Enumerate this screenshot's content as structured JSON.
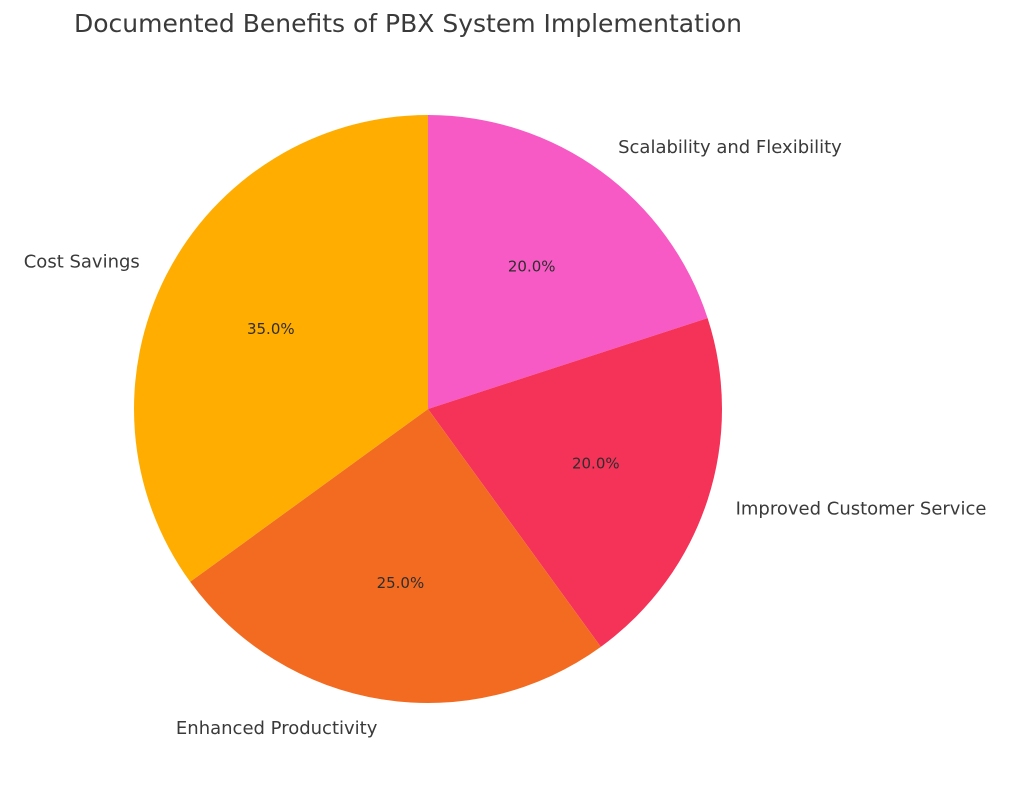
{
  "chart_data": {
    "type": "pie",
    "title": "Documented Benefits of PBX System Implementation",
    "categories": [
      "Scalability and Flexibility",
      "Improved Customer Service",
      "Enhanced Productivity",
      "Cost Savings"
    ],
    "values": [
      20.0,
      20.0,
      25.0,
      35.0
    ],
    "value_labels": [
      "20.0%",
      "20.0%",
      "25.0%",
      "35.0%"
    ],
    "colors": [
      "#F75AC5",
      "#F53257",
      "#F36B21",
      "#FFAD00"
    ],
    "start_angle_deg": 90,
    "direction": "clockwise",
    "legend": "none"
  }
}
